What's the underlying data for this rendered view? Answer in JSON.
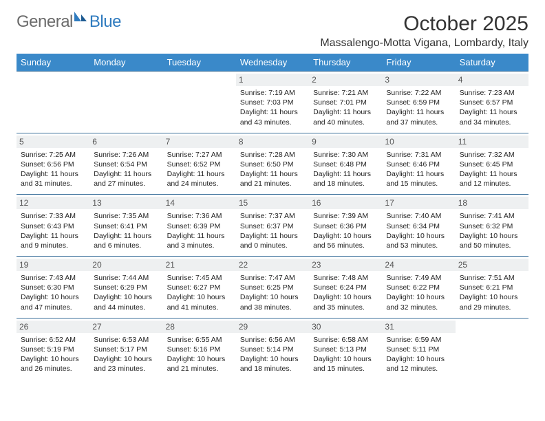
{
  "logo": {
    "text_general": "General",
    "text_blue": "Blue"
  },
  "header": {
    "month_title": "October 2025",
    "location": "Massalengo-Motta Vigana, Lombardy, Italy"
  },
  "style": {
    "header_bg": "#3a89c9",
    "header_text": "#ffffff",
    "row_border": "#3a6f9a",
    "daynum_bg": "#eef0f1",
    "body_text": "#222222",
    "page_bg": "#ffffff",
    "cell_font_size_pt": 8,
    "title_font_size_pt": 22,
    "location_font_size_pt": 12
  },
  "day_headers": [
    "Sunday",
    "Monday",
    "Tuesday",
    "Wednesday",
    "Thursday",
    "Friday",
    "Saturday"
  ],
  "weeks": [
    [
      {
        "n": "",
        "sr": "",
        "ss": "",
        "dl": ""
      },
      {
        "n": "",
        "sr": "",
        "ss": "",
        "dl": ""
      },
      {
        "n": "",
        "sr": "",
        "ss": "",
        "dl": ""
      },
      {
        "n": "1",
        "sr": "Sunrise: 7:19 AM",
        "ss": "Sunset: 7:03 PM",
        "dl": "Daylight: 11 hours and 43 minutes."
      },
      {
        "n": "2",
        "sr": "Sunrise: 7:21 AM",
        "ss": "Sunset: 7:01 PM",
        "dl": "Daylight: 11 hours and 40 minutes."
      },
      {
        "n": "3",
        "sr": "Sunrise: 7:22 AM",
        "ss": "Sunset: 6:59 PM",
        "dl": "Daylight: 11 hours and 37 minutes."
      },
      {
        "n": "4",
        "sr": "Sunrise: 7:23 AM",
        "ss": "Sunset: 6:57 PM",
        "dl": "Daylight: 11 hours and 34 minutes."
      }
    ],
    [
      {
        "n": "5",
        "sr": "Sunrise: 7:25 AM",
        "ss": "Sunset: 6:56 PM",
        "dl": "Daylight: 11 hours and 31 minutes."
      },
      {
        "n": "6",
        "sr": "Sunrise: 7:26 AM",
        "ss": "Sunset: 6:54 PM",
        "dl": "Daylight: 11 hours and 27 minutes."
      },
      {
        "n": "7",
        "sr": "Sunrise: 7:27 AM",
        "ss": "Sunset: 6:52 PM",
        "dl": "Daylight: 11 hours and 24 minutes."
      },
      {
        "n": "8",
        "sr": "Sunrise: 7:28 AM",
        "ss": "Sunset: 6:50 PM",
        "dl": "Daylight: 11 hours and 21 minutes."
      },
      {
        "n": "9",
        "sr": "Sunrise: 7:30 AM",
        "ss": "Sunset: 6:48 PM",
        "dl": "Daylight: 11 hours and 18 minutes."
      },
      {
        "n": "10",
        "sr": "Sunrise: 7:31 AM",
        "ss": "Sunset: 6:46 PM",
        "dl": "Daylight: 11 hours and 15 minutes."
      },
      {
        "n": "11",
        "sr": "Sunrise: 7:32 AM",
        "ss": "Sunset: 6:45 PM",
        "dl": "Daylight: 11 hours and 12 minutes."
      }
    ],
    [
      {
        "n": "12",
        "sr": "Sunrise: 7:33 AM",
        "ss": "Sunset: 6:43 PM",
        "dl": "Daylight: 11 hours and 9 minutes."
      },
      {
        "n": "13",
        "sr": "Sunrise: 7:35 AM",
        "ss": "Sunset: 6:41 PM",
        "dl": "Daylight: 11 hours and 6 minutes."
      },
      {
        "n": "14",
        "sr": "Sunrise: 7:36 AM",
        "ss": "Sunset: 6:39 PM",
        "dl": "Daylight: 11 hours and 3 minutes."
      },
      {
        "n": "15",
        "sr": "Sunrise: 7:37 AM",
        "ss": "Sunset: 6:37 PM",
        "dl": "Daylight: 11 hours and 0 minutes."
      },
      {
        "n": "16",
        "sr": "Sunrise: 7:39 AM",
        "ss": "Sunset: 6:36 PM",
        "dl": "Daylight: 10 hours and 56 minutes."
      },
      {
        "n": "17",
        "sr": "Sunrise: 7:40 AM",
        "ss": "Sunset: 6:34 PM",
        "dl": "Daylight: 10 hours and 53 minutes."
      },
      {
        "n": "18",
        "sr": "Sunrise: 7:41 AM",
        "ss": "Sunset: 6:32 PM",
        "dl": "Daylight: 10 hours and 50 minutes."
      }
    ],
    [
      {
        "n": "19",
        "sr": "Sunrise: 7:43 AM",
        "ss": "Sunset: 6:30 PM",
        "dl": "Daylight: 10 hours and 47 minutes."
      },
      {
        "n": "20",
        "sr": "Sunrise: 7:44 AM",
        "ss": "Sunset: 6:29 PM",
        "dl": "Daylight: 10 hours and 44 minutes."
      },
      {
        "n": "21",
        "sr": "Sunrise: 7:45 AM",
        "ss": "Sunset: 6:27 PM",
        "dl": "Daylight: 10 hours and 41 minutes."
      },
      {
        "n": "22",
        "sr": "Sunrise: 7:47 AM",
        "ss": "Sunset: 6:25 PM",
        "dl": "Daylight: 10 hours and 38 minutes."
      },
      {
        "n": "23",
        "sr": "Sunrise: 7:48 AM",
        "ss": "Sunset: 6:24 PM",
        "dl": "Daylight: 10 hours and 35 minutes."
      },
      {
        "n": "24",
        "sr": "Sunrise: 7:49 AM",
        "ss": "Sunset: 6:22 PM",
        "dl": "Daylight: 10 hours and 32 minutes."
      },
      {
        "n": "25",
        "sr": "Sunrise: 7:51 AM",
        "ss": "Sunset: 6:21 PM",
        "dl": "Daylight: 10 hours and 29 minutes."
      }
    ],
    [
      {
        "n": "26",
        "sr": "Sunrise: 6:52 AM",
        "ss": "Sunset: 5:19 PM",
        "dl": "Daylight: 10 hours and 26 minutes."
      },
      {
        "n": "27",
        "sr": "Sunrise: 6:53 AM",
        "ss": "Sunset: 5:17 PM",
        "dl": "Daylight: 10 hours and 23 minutes."
      },
      {
        "n": "28",
        "sr": "Sunrise: 6:55 AM",
        "ss": "Sunset: 5:16 PM",
        "dl": "Daylight: 10 hours and 21 minutes."
      },
      {
        "n": "29",
        "sr": "Sunrise: 6:56 AM",
        "ss": "Sunset: 5:14 PM",
        "dl": "Daylight: 10 hours and 18 minutes."
      },
      {
        "n": "30",
        "sr": "Sunrise: 6:58 AM",
        "ss": "Sunset: 5:13 PM",
        "dl": "Daylight: 10 hours and 15 minutes."
      },
      {
        "n": "31",
        "sr": "Sunrise: 6:59 AM",
        "ss": "Sunset: 5:11 PM",
        "dl": "Daylight: 10 hours and 12 minutes."
      },
      {
        "n": "",
        "sr": "",
        "ss": "",
        "dl": ""
      }
    ]
  ]
}
